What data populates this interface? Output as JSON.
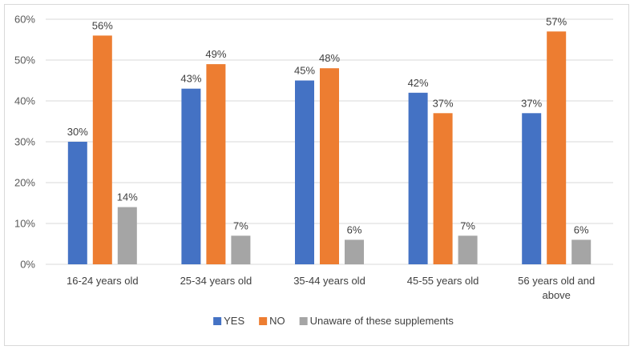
{
  "chart_data": {
    "type": "bar",
    "title": "",
    "xlabel": "",
    "ylabel": "",
    "ylim": [
      0,
      60
    ],
    "yticks": [
      "0%",
      "10%",
      "20%",
      "30%",
      "40%",
      "50%",
      "60%"
    ],
    "grid": true,
    "legend_position": "bottom",
    "categories": [
      "16-24 years old",
      "25-34 years old",
      "35-44 years old",
      "45-55 years old",
      "56 years old and above"
    ],
    "category_lines": [
      [
        "16-24 years old"
      ],
      [
        "25-34 years old"
      ],
      [
        "35-44 years old"
      ],
      [
        "45-55 years old"
      ],
      [
        "56 years old and",
        "above"
      ]
    ],
    "series": [
      {
        "name": "YES",
        "color": "#4472C4",
        "values": [
          30,
          43,
          45,
          42,
          37
        ]
      },
      {
        "name": "NO",
        "color": "#ED7D31",
        "values": [
          56,
          49,
          48,
          37,
          57
        ]
      },
      {
        "name": "Unaware of these supplements",
        "color": "#A5A5A5",
        "values": [
          14,
          7,
          6,
          7,
          6
        ]
      }
    ],
    "value_suffix": "%"
  }
}
